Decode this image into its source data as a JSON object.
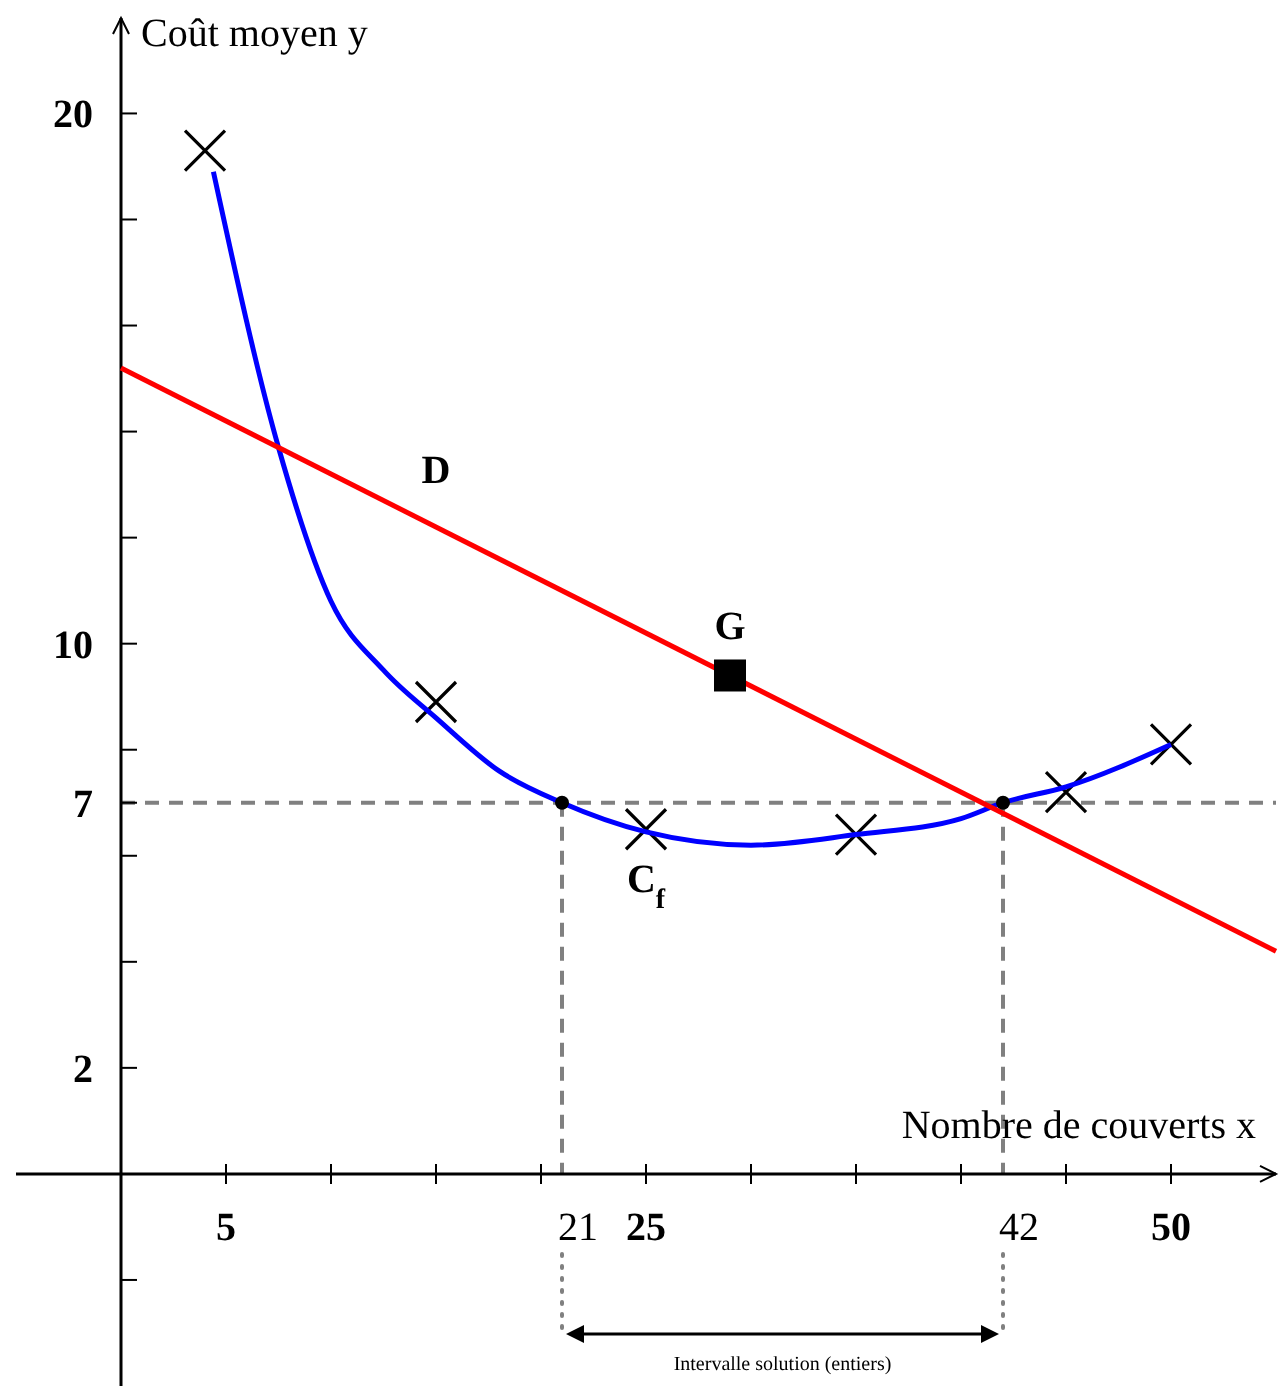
{
  "chart_data": {
    "type": "scatter",
    "xlabel": "Nombre de couverts x",
    "ylabel": "Coût moyen y",
    "xlim": [
      -5,
      55
    ],
    "ylim": [
      -4,
      21.8
    ],
    "xticks": [
      {
        "value": 5,
        "label": "5"
      },
      {
        "value": 10,
        "label": null
      },
      {
        "value": 15,
        "label": null
      },
      {
        "value": 20,
        "label": null
      },
      {
        "value": 21,
        "label": "21"
      },
      {
        "value": 25,
        "label": "25"
      },
      {
        "value": 30,
        "label": null
      },
      {
        "value": 35,
        "label": null
      },
      {
        "value": 40,
        "label": null
      },
      {
        "value": 42,
        "label": "42"
      },
      {
        "value": 45,
        "label": null
      },
      {
        "value": 50,
        "label": "50"
      }
    ],
    "yticks": [
      {
        "value": -2,
        "label": null
      },
      {
        "value": 2,
        "label": "2"
      },
      {
        "value": 4,
        "label": null
      },
      {
        "value": 6,
        "label": null
      },
      {
        "value": 7,
        "label": "7"
      },
      {
        "value": 8,
        "label": null
      },
      {
        "value": 10,
        "label": "10"
      },
      {
        "value": 12,
        "label": null
      },
      {
        "value": 14,
        "label": null
      },
      {
        "value": 16,
        "label": null
      },
      {
        "value": 18,
        "label": null
      },
      {
        "value": 20,
        "label": "20"
      }
    ],
    "series": [
      {
        "color": "#000000",
        "marker": "cross",
        "x": [
          4,
          15,
          25,
          35,
          45,
          50
        ],
        "values": [
          19.3,
          8.9,
          6.5,
          6.4,
          7.2,
          8.1
        ]
      },
      {
        "type": "line",
        "name": "C$_{f}$",
        "color": "#0000ff",
        "marker": "none",
        "x": [
          4.4,
          7.5,
          10,
          12.5,
          15,
          18,
          21,
          25,
          30,
          35,
          40,
          42,
          45,
          50
        ],
        "values": [
          18.9,
          13.7,
          10.8,
          9.5,
          8.6,
          7.6,
          7.0,
          6.45,
          6.2,
          6.4,
          6.7,
          7.0,
          7.3,
          8.1
        ]
      },
      {
        "type": "line",
        "name": "D",
        "color": "#ff0000",
        "marker": "none",
        "x": [
          0,
          55
        ],
        "values": [
          15.2,
          4.2
        ]
      },
      {
        "type": "scatter",
        "name": "G",
        "color": "#000000",
        "marker": "square",
        "x": [
          29
        ],
        "values": [
          9.4
        ]
      },
      {
        "type": "scatter",
        "color": "#000000",
        "marker": "circle",
        "x": [
          21,
          42
        ],
        "values": [
          7,
          7
        ]
      }
    ],
    "ref_lines": [
      {
        "axis": "y",
        "value": 7,
        "color": "#808080",
        "line_style": "dashed"
      },
      {
        "axis": "x",
        "value": 21,
        "color": "#808080",
        "line_style": "dashed"
      },
      {
        "axis": "x",
        "value": 42,
        "color": "#808080",
        "line_style": "dashed"
      }
    ],
    "annotations": [
      "Intervalle solution (entiers)"
    ],
    "grid": false
  }
}
